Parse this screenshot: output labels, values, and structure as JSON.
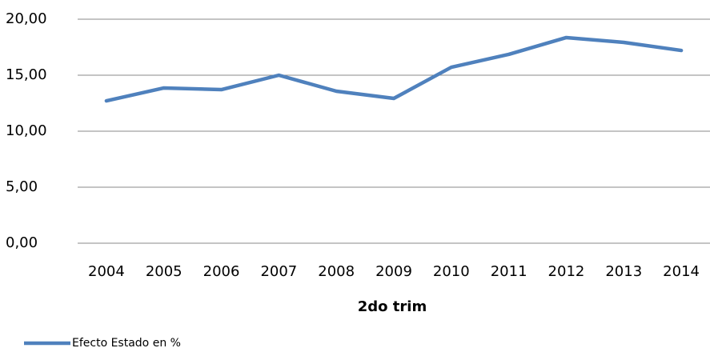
{
  "chart_data": {
    "type": "line",
    "x_label": "2do trim",
    "categories": [
      "2004",
      "2005",
      "2006",
      "2007",
      "2008",
      "2009",
      "2010",
      "2011",
      "2012",
      "2013",
      "2014"
    ],
    "series": [
      {
        "name": "Efecto Estado en %",
        "color": "#4f81bd",
        "values": [
          12.71,
          13.86,
          13.71,
          15.0,
          13.57,
          12.93,
          15.71,
          16.86,
          18.36,
          17.93,
          17.21
        ]
      }
    ],
    "ylim": [
      0,
      20
    ],
    "yticks": [
      {
        "value": 0,
        "label": "0,00"
      },
      {
        "value": 5,
        "label": "5,00"
      },
      {
        "value": 10,
        "label": "10,00"
      },
      {
        "value": 15,
        "label": "15,00"
      },
      {
        "value": 20,
        "label": "20,00"
      }
    ],
    "grid": true,
    "legend": "bottom-left"
  }
}
